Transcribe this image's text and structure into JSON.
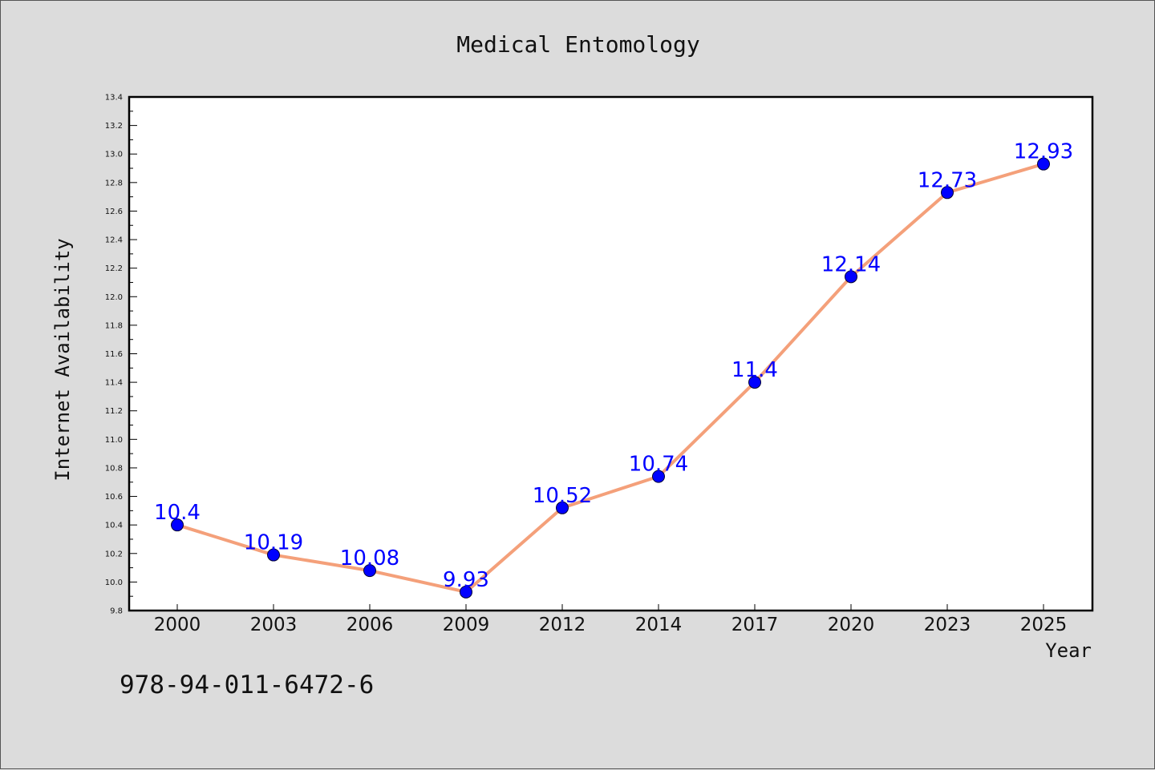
{
  "chart_data": {
    "type": "line",
    "title": "Medical Entomology",
    "xlabel": "Year",
    "ylabel": "Internet Availability",
    "categories": [
      "2000",
      "2003",
      "2006",
      "2009",
      "2012",
      "2014",
      "2017",
      "2020",
      "2023",
      "2025"
    ],
    "series": [
      {
        "values": [
          10.4,
          10.19,
          10.08,
          9.93,
          10.52,
          10.74,
          11.4,
          12.14,
          12.73,
          12.93
        ],
        "data_labels": [
          "10.4",
          "10.19",
          "10.08",
          "9.93",
          "10.52",
          "10.74",
          "11.4",
          "12.14",
          "12.73",
          "12.93"
        ],
        "line_color": "#f4a07a",
        "marker_color": "#0000ff"
      }
    ],
    "ylim": [
      9.8,
      13.4
    ],
    "yticks": [
      "9.8",
      "10.0",
      "10.2",
      "10.4",
      "10.6",
      "10.8",
      "11.0",
      "11.2",
      "11.4",
      "11.6",
      "11.8",
      "12.0",
      "12.2",
      "12.4",
      "12.6",
      "12.8",
      "13.0",
      "13.2",
      "13.4"
    ],
    "grid": false,
    "legend": "none",
    "annotation": "978-94-011-6472-6"
  }
}
